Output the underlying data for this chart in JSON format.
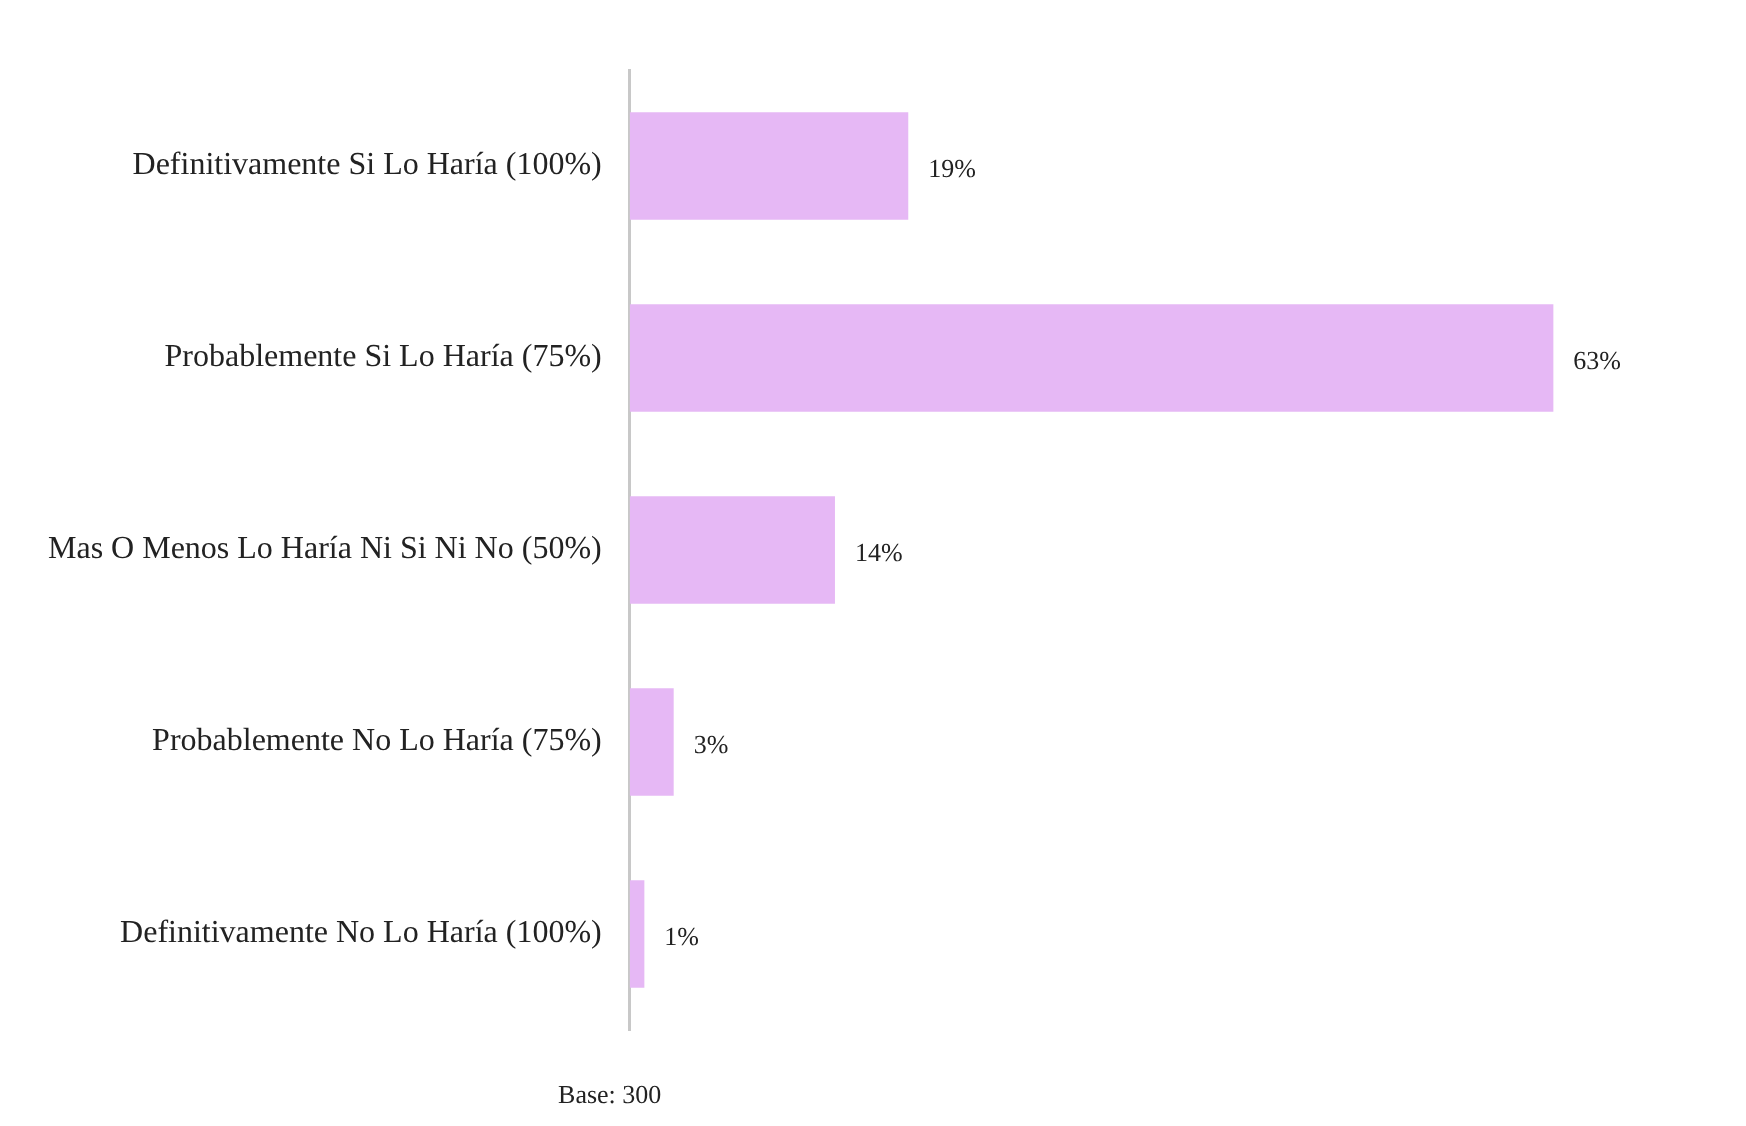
{
  "chart_data": {
    "type": "bar",
    "orientation": "horizontal",
    "categories": [
      "Definitivamente Si Lo Haría (100%)",
      "Probablemente Si Lo Haría (75%)",
      "Mas O Menos Lo Haría Ni Si Ni No (50%)",
      "Probablemente No Lo Haría (75%)",
      "Definitivamente No Lo Haría (100%)"
    ],
    "values": [
      19,
      63,
      14,
      3,
      1
    ],
    "value_labels": [
      "19%",
      "63%",
      "14%",
      "3%",
      "1%"
    ],
    "color": "#e6b8f5",
    "legend": false,
    "annotations": [
      "Base: 300"
    ]
  }
}
